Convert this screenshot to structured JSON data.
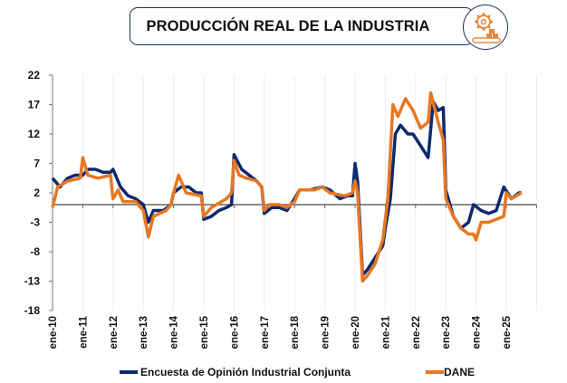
{
  "chart_data": {
    "type": "line",
    "title": "PRODUCCIÓN REAL DE LA INDUSTRIA",
    "xlabel": "",
    "ylabel": "",
    "ylim": [
      -18,
      22
    ],
    "yticks": [
      22,
      17,
      12,
      7,
      2,
      -3,
      -8,
      -13,
      -18
    ],
    "xticks": [
      "ene-10",
      "ene-11",
      "ene-12",
      "ene-13",
      "ene-14",
      "ene-15",
      "ene-16",
      "ene-17",
      "ene-18",
      "ene-19",
      "ene-20",
      "ene-21",
      "ene-22",
      "ene-23",
      "ene-24",
      "ene-25"
    ],
    "grid": "vertical",
    "legend": "bottom",
    "series": [
      {
        "name": "Encuesta de Opinión Industrial Conjunta",
        "color": "#0d2a6e",
        "points": [
          [
            "2010-01",
            4.5
          ],
          [
            "2010-04",
            3
          ],
          [
            "2010-07",
            4.5
          ],
          [
            "2010-10",
            5
          ],
          [
            "2011-01",
            5
          ],
          [
            "2011-03",
            6
          ],
          [
            "2011-06",
            6
          ],
          [
            "2011-09",
            5.5
          ],
          [
            "2011-12",
            5.5
          ],
          [
            "2012-01",
            6
          ],
          [
            "2012-04",
            3
          ],
          [
            "2012-07",
            1.5
          ],
          [
            "2012-10",
            1
          ],
          [
            "2013-01",
            0
          ],
          [
            "2013-03",
            -3
          ],
          [
            "2013-05",
            -1
          ],
          [
            "2013-09",
            -1
          ],
          [
            "2013-12",
            0
          ],
          [
            "2014-01",
            2
          ],
          [
            "2014-04",
            3
          ],
          [
            "2014-07",
            3
          ],
          [
            "2014-10",
            2
          ],
          [
            "2014-12",
            2
          ],
          [
            "2015-01",
            -2.5
          ],
          [
            "2015-04",
            -2
          ],
          [
            "2015-07",
            -1
          ],
          [
            "2015-10",
            -0.5
          ],
          [
            "2015-12",
            0
          ],
          [
            "2016-01",
            8.5
          ],
          [
            "2016-04",
            6
          ],
          [
            "2016-07",
            5
          ],
          [
            "2016-10",
            4
          ],
          [
            "2016-12",
            3
          ],
          [
            "2017-01",
            -1.5
          ],
          [
            "2017-04",
            -0.5
          ],
          [
            "2017-07",
            -0.5
          ],
          [
            "2017-10",
            -1
          ],
          [
            "2018-01",
            1
          ],
          [
            "2018-03",
            2.5
          ],
          [
            "2018-07",
            2.5
          ],
          [
            "2018-12",
            3
          ],
          [
            "2019-03",
            2.5
          ],
          [
            "2019-07",
            1
          ],
          [
            "2019-10",
            1.5
          ],
          [
            "2019-12",
            1.5
          ],
          [
            "2020-01",
            7
          ],
          [
            "2020-02",
            4
          ],
          [
            "2020-04",
            -12
          ],
          [
            "2020-06",
            -11
          ],
          [
            "2020-09",
            -9
          ],
          [
            "2020-12",
            -7
          ],
          [
            "2021-01",
            -4
          ],
          [
            "2021-03",
            1
          ],
          [
            "2021-05",
            12
          ],
          [
            "2021-07",
            13.5
          ],
          [
            "2021-10",
            12
          ],
          [
            "2021-12",
            12
          ],
          [
            "2022-03",
            10
          ],
          [
            "2022-06",
            8
          ],
          [
            "2022-08",
            17.5
          ],
          [
            "2022-10",
            16
          ],
          [
            "2022-12",
            16.5
          ],
          [
            "2023-01",
            2.5
          ],
          [
            "2023-04",
            -2
          ],
          [
            "2023-07",
            -4
          ],
          [
            "2023-10",
            -3
          ],
          [
            "2023-12",
            0
          ],
          [
            "2024-03",
            -1
          ],
          [
            "2024-06",
            -1.5
          ],
          [
            "2024-09",
            -1
          ],
          [
            "2024-12",
            3
          ],
          [
            "2025-03",
            1
          ],
          [
            "2025-06",
            2
          ],
          [
            "2025-07",
            2
          ]
        ]
      },
      {
        "name": "DANE",
        "color": "#e87722",
        "points": [
          [
            "2010-01",
            -0.5
          ],
          [
            "2010-03",
            3
          ],
          [
            "2010-07",
            4
          ],
          [
            "2010-12",
            4.5
          ],
          [
            "2011-01",
            8
          ],
          [
            "2011-03",
            5
          ],
          [
            "2011-07",
            4.5
          ],
          [
            "2011-12",
            5
          ],
          [
            "2012-01",
            1
          ],
          [
            "2012-03",
            2.5
          ],
          [
            "2012-05",
            0.5
          ],
          [
            "2012-10",
            0.5
          ],
          [
            "2013-01",
            -1
          ],
          [
            "2013-03",
            -5.5
          ],
          [
            "2013-05",
            -2
          ],
          [
            "2013-10",
            -1
          ],
          [
            "2013-12",
            0
          ],
          [
            "2014-01",
            2
          ],
          [
            "2014-03",
            5
          ],
          [
            "2014-06",
            2
          ],
          [
            "2014-12",
            1.5
          ],
          [
            "2015-01",
            -2
          ],
          [
            "2015-04",
            -0.5
          ],
          [
            "2015-10",
            1
          ],
          [
            "2015-12",
            2
          ],
          [
            "2016-01",
            7.5
          ],
          [
            "2016-03",
            5
          ],
          [
            "2016-06",
            4.5
          ],
          [
            "2016-10",
            4
          ],
          [
            "2016-12",
            3
          ],
          [
            "2017-01",
            -1
          ],
          [
            "2017-03",
            0
          ],
          [
            "2017-07",
            0
          ],
          [
            "2017-10",
            -0.5
          ],
          [
            "2018-01",
            0.5
          ],
          [
            "2018-03",
            2.5
          ],
          [
            "2018-09",
            2.5
          ],
          [
            "2018-12",
            3
          ],
          [
            "2019-03",
            2
          ],
          [
            "2019-09",
            1.5
          ],
          [
            "2019-12",
            2
          ],
          [
            "2020-01",
            4
          ],
          [
            "2020-02",
            2
          ],
          [
            "2020-04",
            -13
          ],
          [
            "2020-06",
            -12
          ],
          [
            "2020-09",
            -10
          ],
          [
            "2020-12",
            -6
          ],
          [
            "2021-02",
            1
          ],
          [
            "2021-04",
            17
          ],
          [
            "2021-06",
            15
          ],
          [
            "2021-09",
            18
          ],
          [
            "2021-12",
            16
          ],
          [
            "2022-03",
            13
          ],
          [
            "2022-06",
            14
          ],
          [
            "2022-07",
            19
          ],
          [
            "2022-10",
            14
          ],
          [
            "2022-12",
            11
          ],
          [
            "2023-01",
            1
          ],
          [
            "2023-04",
            -2
          ],
          [
            "2023-07",
            -4
          ],
          [
            "2023-10",
            -5
          ],
          [
            "2023-12",
            -5
          ],
          [
            "2024-01",
            -6
          ],
          [
            "2024-03",
            -3
          ],
          [
            "2024-06",
            -3
          ],
          [
            "2024-12",
            -2
          ],
          [
            "2025-01",
            2
          ],
          [
            "2025-03",
            1
          ],
          [
            "2025-07",
            2
          ]
        ]
      }
    ]
  }
}
